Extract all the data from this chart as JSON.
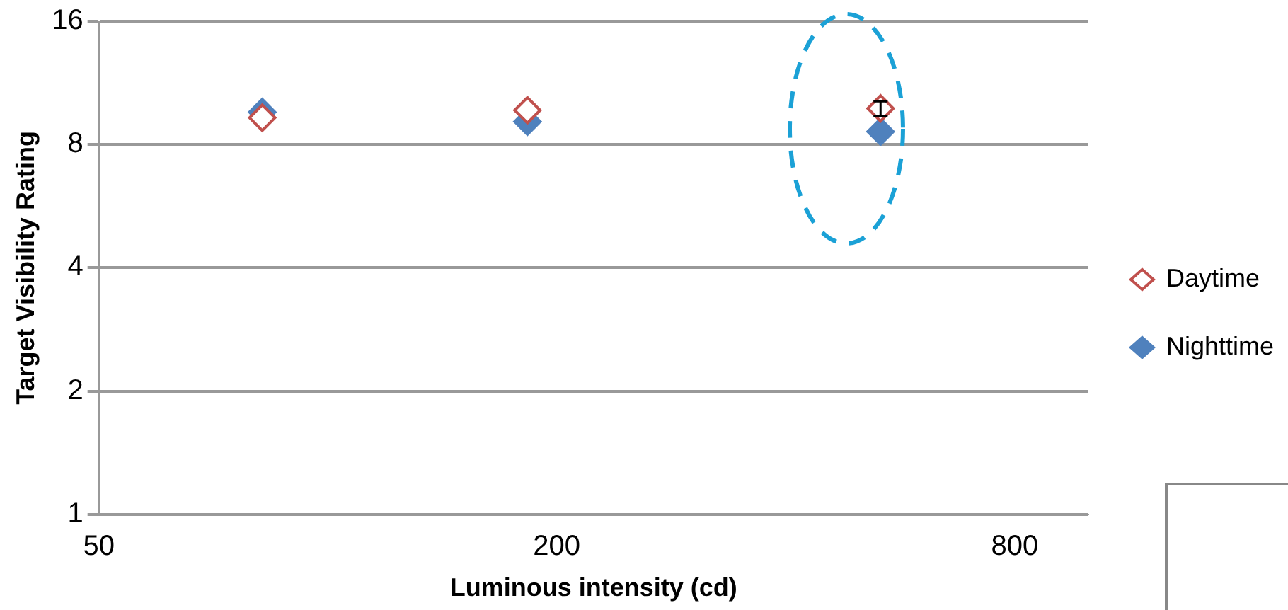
{
  "chart_data": {
    "type": "scatter",
    "xlabel": "Luminous intensity (cd)",
    "ylabel": "Target Visibility Rating",
    "log": "xy",
    "xlim": [
      50,
      1000
    ],
    "xticks": [
      50,
      200,
      800
    ],
    "ylim": [
      1,
      16
    ],
    "yticks": [
      1,
      2,
      4,
      8,
      16
    ],
    "grid": "y",
    "legend": "right",
    "marker": "diamond",
    "series": [
      {
        "name": "Daytime",
        "color": "#c0504d",
        "x": [
          82,
          183,
          533
        ],
        "values": [
          9.3,
          9.7,
          9.8
        ],
        "errors": [
          null,
          null,
          0.4
        ]
      },
      {
        "name": "Nighttime",
        "color": "#4f81bd",
        "x": [
          82,
          183,
          533
        ],
        "values": [
          9.6,
          9.1,
          8.6
        ]
      }
    ]
  }
}
